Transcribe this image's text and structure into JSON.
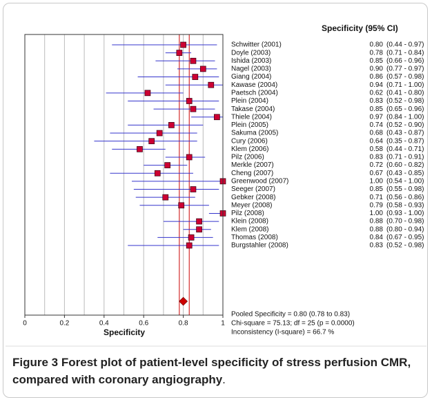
{
  "chart_data": {
    "type": "forest",
    "header": "Specificity (95% CI)",
    "xlabel": "Specificity",
    "categories": [
      "Schwitter (2001)",
      "Doyle (2003)",
      "Ishida (2003)",
      "Nagel (2003)",
      "Giang (2004)",
      "Kawase (2004)",
      "Paetsch (2004)",
      "Plein (2004)",
      "Takase (2004)",
      "Thiele (2004)",
      "Plein (2005)",
      "Sakuma (2005)",
      "Cury (2006)",
      "Klem (2006)",
      "Pilz (2006)",
      "Merkle (2007)",
      "Cheng (2007)",
      "Greenwood (2007)",
      "Seeger (2007)",
      "Gebker (2008)",
      "Meyer (2008)",
      "Pilz (2008)",
      "Klein (2008)",
      "Klem (2008)",
      "Thomas (2008)",
      "Burgstahler (2008)"
    ],
    "values": [
      0.8,
      0.78,
      0.85,
      0.9,
      0.86,
      0.94,
      0.62,
      0.83,
      0.85,
      0.97,
      0.74,
      0.68,
      0.64,
      0.58,
      0.83,
      0.72,
      0.67,
      1,
      0.85,
      0.71,
      0.79,
      1,
      0.88,
      0.88,
      0.84,
      0.83
    ],
    "value_labels": [
      "0.80",
      "0.78",
      "0.85",
      "0.90",
      "0.86",
      "0.94",
      "0.62",
      "0.83",
      "0.85",
      "0.97",
      "0.74",
      "0.68",
      "0.64",
      "0.58",
      "0.83",
      "0.72",
      "0.67",
      "1.00",
      "0.85",
      "0.71",
      "0.79",
      "1.00",
      "0.88",
      "0.88",
      "0.84",
      "0.83"
    ],
    "lower": [
      0.44,
      0.71,
      0.66,
      0.77,
      0.57,
      0.71,
      0.41,
      0.52,
      0.65,
      0.84,
      0.52,
      0.43,
      0.35,
      0.44,
      0.71,
      0.6,
      0.43,
      0.54,
      0.55,
      0.56,
      0.58,
      0.93,
      0.7,
      0.8,
      0.67,
      0.52
    ],
    "upper": [
      0.97,
      0.84,
      0.96,
      0.97,
      0.98,
      1,
      0.8,
      0.98,
      0.96,
      1,
      0.9,
      0.87,
      0.87,
      0.71,
      0.91,
      0.82,
      0.85,
      1,
      0.98,
      0.86,
      0.93,
      1,
      0.98,
      0.94,
      0.95,
      0.98
    ],
    "ci_labels": [
      "(0.44 - 0.97)",
      "(0.71 - 0.84)",
      "(0.66 - 0.96)",
      "(0.77 - 0.97)",
      "(0.57 - 0.98)",
      "(0.71 - 1.00)",
      "(0.41 - 0.80)",
      "(0.52 - 0.98)",
      "(0.65 - 0.96)",
      "(0.84 - 1.00)",
      "(0.52 - 0.90)",
      "(0.43 - 0.87)",
      "(0.35 - 0.87)",
      "(0.44 - 0.71)",
      "(0.71 - 0.91)",
      "(0.60 - 0.82)",
      "(0.43 - 0.85)",
      "(0.54 - 1.00)",
      "(0.55 - 0.98)",
      "(0.56 - 0.86)",
      "(0.58 - 0.93)",
      "(0.93 - 1.00)",
      "(0.70 - 0.98)",
      "(0.80 - 0.94)",
      "(0.67 - 0.95)",
      "(0.52 - 0.98)"
    ],
    "pooled": {
      "value": 0.8,
      "lower": 0.78,
      "upper": 0.83
    },
    "annotations": [
      "Pooled Specificity = 0.80 (0.78 to 0.83)",
      "Chi-square = 75.13; df =  25  (p = 0.0000)",
      "Inconsistency (I-square) = 66.7 %"
    ],
    "xlim": [
      0,
      1
    ],
    "xticks": [
      0,
      0.2,
      0.4,
      0.6,
      0.8,
      1
    ],
    "grid_xticks": [
      0.1,
      0.2,
      0.3,
      0.4,
      0.5,
      0.6,
      0.7,
      0.8,
      0.9
    ],
    "line_color": "#3333cc",
    "marker_color": "#cc0033",
    "pooled_color": "#cc0000"
  },
  "caption": {
    "label": "Figure 3",
    "text": "Forest plot of patient-level specificity of stress perfusion CMR, compared with coronary angiography",
    "end": "."
  }
}
